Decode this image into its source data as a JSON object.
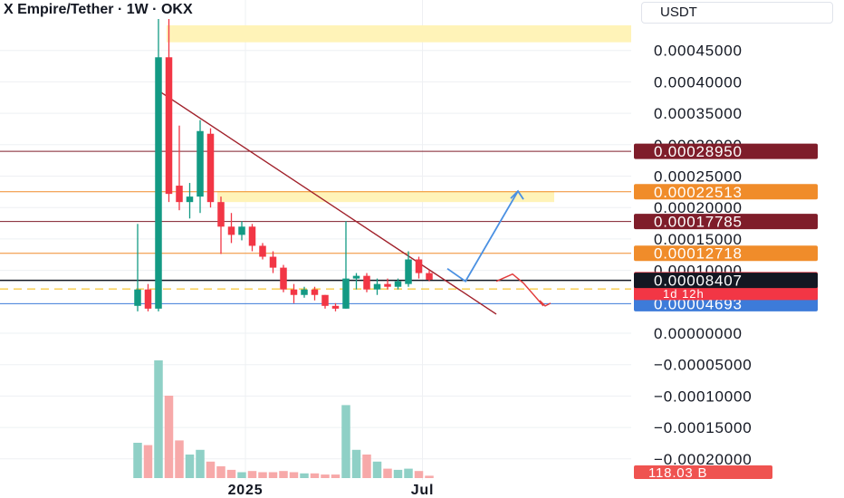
{
  "header": {
    "title": "X Empire/Tether · 1W · OKX",
    "currency": "USDT"
  },
  "colors": {
    "up": "#139a84",
    "down": "#f23645",
    "vol_up": "#8fd0c6",
    "vol_down": "#f7a9a9",
    "grid": "#eef0f3",
    "level_dark": "#7f1d2a",
    "level_orange": "#f08c2a",
    "level_black": "#131722",
    "level_yellow": "#f5b800",
    "level_blue": "#3d7bd9",
    "zone_fill": "#fff3b8",
    "trendline": "#a0202a",
    "arrow_up": "#4a90e2",
    "arrow_down": "#e23a3a"
  },
  "chart_data": {
    "type": "candlestick",
    "title": "X Empire/Tether · 1W · OKX",
    "ylabel": "USDT",
    "ylim": [
      -0.00021,
      0.0005
    ],
    "y_ticks": [
      {
        "value": 0.00045,
        "label": "0.00045000"
      },
      {
        "value": 0.0004,
        "label": "0.00040000"
      },
      {
        "value": 0.00035,
        "label": "0.00035000"
      },
      {
        "value": 0.0003,
        "label": "0.00030000"
      },
      {
        "value": 0.00025,
        "label": "0.00025000"
      },
      {
        "value": 0.0002,
        "label": "0.00020000"
      },
      {
        "value": 0.00015,
        "label": "0.00015000"
      },
      {
        "value": 0.0001,
        "label": "0.00010000"
      },
      {
        "value": 0.0,
        "label": "0.00000000"
      },
      {
        "value": -5e-05,
        "label": "−0.00005000"
      },
      {
        "value": -0.0001,
        "label": "−0.00010000"
      },
      {
        "value": -0.00015,
        "label": "−0.00015000"
      },
      {
        "value": -0.0002,
        "label": "−0.00020000"
      }
    ],
    "x_labels": [
      {
        "index": 6,
        "label": "2025"
      },
      {
        "index": 23,
        "label": "Jul"
      }
    ],
    "candles": [
      {
        "o": 4.35e-05,
        "h": 0.0001739,
        "l": 3.48e-05,
        "c": 6.96e-05
      },
      {
        "o": 6.96e-05,
        "h": 7.83e-05,
        "l": 3.48e-05,
        "c": 3.91e-05
      },
      {
        "o": 3.91e-05,
        "h": 0.0005,
        "l": 3.48e-05,
        "c": 0.0004391
      },
      {
        "o": 0.0004391,
        "h": 0.0005,
        "l": 0.0002087,
        "c": 0.0002217
      },
      {
        "o": 0.0002348,
        "h": 0.0003304,
        "l": 0.0001957,
        "c": 0.0002087
      },
      {
        "o": 0.0002087,
        "h": 0.0002391,
        "l": 0.0001826,
        "c": 0.0002174
      },
      {
        "o": 0.0002174,
        "h": 0.0003391,
        "l": 0.0001913,
        "c": 0.0003217
      },
      {
        "o": 0.0003174,
        "h": 0.0003261,
        "l": 0.0002,
        "c": 0.0002087
      },
      {
        "o": 0.0002087,
        "h": 0.0002174,
        "l": 0.0001261,
        "c": 0.0001696
      },
      {
        "o": 0.0001696,
        "h": 0.0001913,
        "l": 0.0001435,
        "c": 0.0001565
      },
      {
        "o": 0.0001565,
        "h": 0.0001783,
        "l": 0.0001478,
        "c": 0.0001696
      },
      {
        "o": 0.0001696,
        "h": 0.0001739,
        "l": 0.0001304,
        "c": 0.0001391
      },
      {
        "o": 0.0001391,
        "h": 0.0001435,
        "l": 0.0001174,
        "c": 0.0001217
      },
      {
        "o": 0.0001217,
        "h": 0.0001304,
        "l": 9.57e-05,
        "c": 0.0001043
      },
      {
        "o": 0.0001043,
        "h": 0.0001087,
        "l": 6.52e-05,
        "c": 6.96e-05
      },
      {
        "o": 6.96e-05,
        "h": 7.83e-05,
        "l": 4.78e-05,
        "c": 6.09e-05
      },
      {
        "o": 6.09e-05,
        "h": 7.39e-05,
        "l": 5.65e-05,
        "c": 6.96e-05
      },
      {
        "o": 6.96e-05,
        "h": 7.39e-05,
        "l": 5.22e-05,
        "c": 6.09e-05
      },
      {
        "o": 6.09e-05,
        "h": 6.09e-05,
        "l": 3.91e-05,
        "c": 4.35e-05
      },
      {
        "o": 4.35e-05,
        "h": 4.78e-05,
        "l": 3.48e-05,
        "c": 3.91e-05
      },
      {
        "o": 3.91e-05,
        "h": 0.0001783,
        "l": 3.91e-05,
        "c": 8.7e-05
      },
      {
        "o": 8.7e-05,
        "h": 9.57e-05,
        "l": 6.96e-05,
        "c": 9.13e-05
      },
      {
        "o": 9.13e-05,
        "h": 9.57e-05,
        "l": 6.52e-05,
        "c": 6.96e-05
      },
      {
        "o": 6.96e-05,
        "h": 8.7e-05,
        "l": 6.09e-05,
        "c": 7.83e-05
      },
      {
        "o": 7.83e-05,
        "h": 8.7e-05,
        "l": 6.96e-05,
        "c": 7.39e-05
      },
      {
        "o": 7.39e-05,
        "h": 8.7e-05,
        "l": 6.96e-05,
        "c": 8.26e-05
      },
      {
        "o": 7.83e-05,
        "h": 0.0001304,
        "l": 7.39e-05,
        "c": 0.0001174
      },
      {
        "o": 0.0001174,
        "h": 0.0001217,
        "l": 8.7e-05,
        "c": 9.57e-05
      },
      {
        "o": 9.57e-05,
        "h": 0.0001,
        "l": 8.26e-05,
        "c": 8.51e-05
      }
    ],
    "volume_labels": [
      {
        "value": 4.35e-05,
        "label": "up"
      }
    ],
    "volume": [
      0.3,
      0.28,
      1.0,
      0.7,
      0.32,
      0.2,
      0.24,
      0.14,
      0.1,
      0.07,
      0.05,
      0.06,
      0.05,
      0.05,
      0.06,
      0.05,
      0.04,
      0.04,
      0.03,
      0.03,
      0.62,
      0.24,
      0.2,
      0.14,
      0.08,
      0.07,
      0.08,
      0.06,
      0.02
    ],
    "levels": [
      {
        "value": 0.0002895,
        "label": "0.00028950",
        "color": "level_dark"
      },
      {
        "value": 0.00022513,
        "label": "0.00022513",
        "color": "level_orange"
      },
      {
        "value": 0.00017785,
        "label": "0.00017785",
        "color": "level_dark"
      },
      {
        "value": 0.00012718,
        "label": "0.00012718",
        "color": "level_orange"
      },
      {
        "value": 8.407e-05,
        "label": "0.00008407",
        "color": "level_black"
      },
      {
        "value": 7.046e-05,
        "label": "0.00007046",
        "color": "level_yellow",
        "dashed": true
      },
      {
        "value": 4.693e-05,
        "label": "0.00004693",
        "color": "level_blue"
      }
    ],
    "last_price": {
      "value": 8.514e-05,
      "label": "0.00008514",
      "countdown": "1d 12h"
    },
    "volume_label": "118.03 B",
    "zones": [
      {
        "y1": 0.000463,
        "y2": 0.00049
      },
      {
        "y1": 0.0002087,
        "y2": 0.0002261
      }
    ]
  }
}
